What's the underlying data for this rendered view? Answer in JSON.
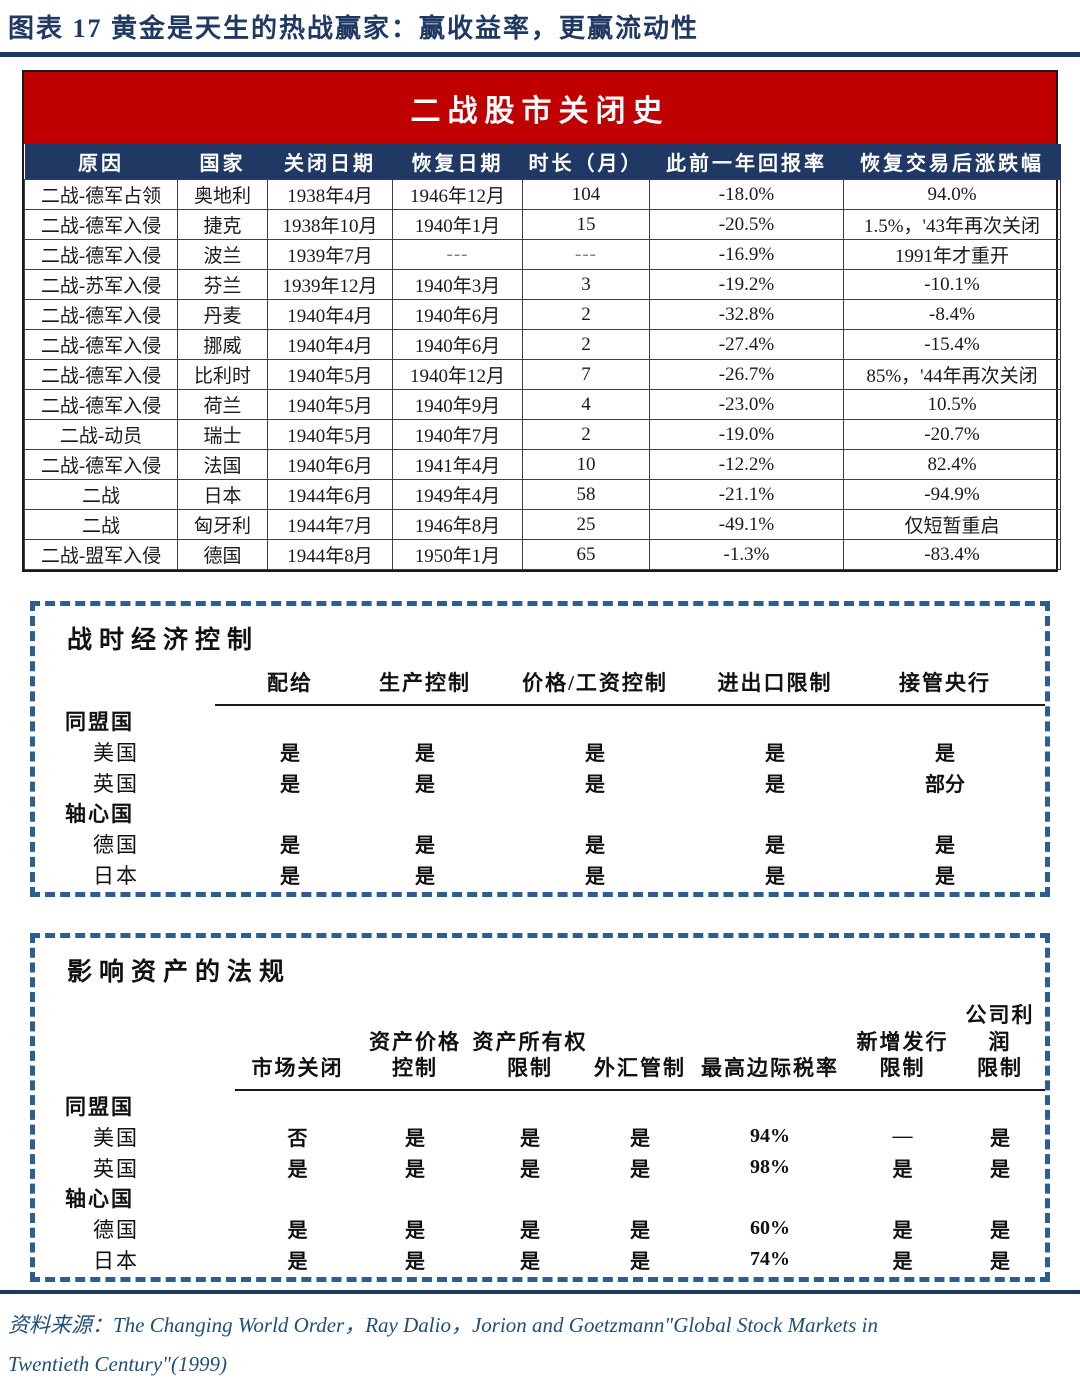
{
  "page": {
    "title": "图表 17  黄金是天生的热战赢家：赢收益率，更赢流动性",
    "source_line1": "资料来源：The Changing World Order，Ray Dalio，Jorion and Goetzmann\"Global Stock Markets in",
    "source_line2": "Twentieth Century\"(1999)"
  },
  "colors": {
    "navy": "#1F3864",
    "banner_red": "#C00000",
    "value_red": "#FF0000",
    "value_green": "#00B050",
    "value_blue": "#0070C0",
    "dashed_border_blue": "#2E5D8E",
    "source_blue": "#1F4E79"
  },
  "closure_table": {
    "banner": "二战股市关闭史",
    "columns": [
      "原因",
      "国家",
      "关闭日期",
      "恢复日期",
      "时长（月）",
      "此前一年回报率",
      "恢复交易后涨跌幅"
    ],
    "rows": [
      [
        "二战-德军占领",
        "奥地利",
        "1938年4月",
        "1946年12月",
        "104",
        "-18.0%",
        "94.0%"
      ],
      [
        "二战-德军入侵",
        "捷克",
        "1938年10月",
        "1940年1月",
        "15",
        "-20.5%",
        "1.5%，'43年再次关闭"
      ],
      [
        "二战-德军入侵",
        "波兰",
        "1939年7月",
        "---",
        "---",
        "-16.9%",
        "1991年才重开"
      ],
      [
        "二战-苏军入侵",
        "芬兰",
        "1939年12月",
        "1940年3月",
        "3",
        "-19.2%",
        "-10.1%"
      ],
      [
        "二战-德军入侵",
        "丹麦",
        "1940年4月",
        "1940年6月",
        "2",
        "-32.8%",
        "-8.4%"
      ],
      [
        "二战-德军入侵",
        "挪威",
        "1940年4月",
        "1940年6月",
        "2",
        "-27.4%",
        "-15.4%"
      ],
      [
        "二战-德军入侵",
        "比利时",
        "1940年5月",
        "1940年12月",
        "7",
        "-26.7%",
        "85%，'44年再次关闭"
      ],
      [
        "二战-德军入侵",
        "荷兰",
        "1940年5月",
        "1940年9月",
        "4",
        "-23.0%",
        "10.5%"
      ],
      [
        "二战-动员",
        "瑞士",
        "1940年5月",
        "1940年7月",
        "2",
        "-19.0%",
        "-20.7%"
      ],
      [
        "二战-德军入侵",
        "法国",
        "1940年6月",
        "1941年4月",
        "10",
        "-12.2%",
        "82.4%"
      ],
      [
        "二战",
        "日本",
        "1944年6月",
        "1949年4月",
        "58",
        "-21.1%",
        "-94.9%"
      ],
      [
        "二战",
        "匈牙利",
        "1944年7月",
        "1946年8月",
        "25",
        "-49.1%",
        "仅短暂重启"
      ],
      [
        "二战-盟军入侵",
        "德国",
        "1944年8月",
        "1950年1月",
        "65",
        "-1.3%",
        "-83.4%"
      ]
    ]
  },
  "wartime_controls": {
    "title": "战时经济控制",
    "columns": [
      "配给",
      "生产控制",
      "价格/工资控制",
      "进出口限制",
      "接管央行"
    ],
    "rows": [
      {
        "type": "group",
        "label": "同盟国"
      },
      {
        "type": "country",
        "label": "美国",
        "values": [
          {
            "t": "是",
            "c": "red"
          },
          {
            "t": "是",
            "c": "red"
          },
          {
            "t": "是",
            "c": "red"
          },
          {
            "t": "是",
            "c": "red"
          },
          {
            "t": "是",
            "c": "red"
          }
        ]
      },
      {
        "type": "country",
        "label": "英国",
        "values": [
          {
            "t": "是",
            "c": "red"
          },
          {
            "t": "是",
            "c": "red"
          },
          {
            "t": "是",
            "c": "red"
          },
          {
            "t": "是",
            "c": "red"
          },
          {
            "t": "部分",
            "c": "blue"
          }
        ]
      },
      {
        "type": "group",
        "label": "轴心国"
      },
      {
        "type": "country",
        "label": "德国",
        "values": [
          {
            "t": "是",
            "c": "red"
          },
          {
            "t": "是",
            "c": "red"
          },
          {
            "t": "是",
            "c": "red"
          },
          {
            "t": "是",
            "c": "red"
          },
          {
            "t": "是",
            "c": "red"
          }
        ]
      },
      {
        "type": "country",
        "label": "日本",
        "values": [
          {
            "t": "是",
            "c": "red"
          },
          {
            "t": "是",
            "c": "red"
          },
          {
            "t": "是",
            "c": "red"
          },
          {
            "t": "是",
            "c": "red"
          },
          {
            "t": "是",
            "c": "red"
          }
        ]
      }
    ]
  },
  "asset_regulations": {
    "title": "影响资产的法规",
    "columns": [
      "市场关闭",
      "资产价格\n控制",
      "资产所有权\n限制",
      "外汇管制",
      "最高边际税率",
      "新增发行\n限制",
      "公司利润\n限制"
    ],
    "rows": [
      {
        "type": "group",
        "label": "同盟国"
      },
      {
        "type": "country",
        "label": "美国",
        "values": [
          {
            "t": "否",
            "c": "green"
          },
          {
            "t": "是",
            "c": "red"
          },
          {
            "t": "是",
            "c": "red"
          },
          {
            "t": "是",
            "c": "red"
          },
          {
            "t": "94%",
            "c": "red"
          },
          {
            "t": "—",
            "c": "red"
          },
          {
            "t": "是",
            "c": "red"
          }
        ]
      },
      {
        "type": "country",
        "label": "英国",
        "values": [
          {
            "t": "是",
            "c": "red"
          },
          {
            "t": "是",
            "c": "red"
          },
          {
            "t": "是",
            "c": "red"
          },
          {
            "t": "是",
            "c": "red"
          },
          {
            "t": "98%",
            "c": "red"
          },
          {
            "t": "是",
            "c": "red"
          },
          {
            "t": "是",
            "c": "red"
          }
        ]
      },
      {
        "type": "group",
        "label": "轴心国"
      },
      {
        "type": "country",
        "label": "德国",
        "values": [
          {
            "t": "是",
            "c": "red"
          },
          {
            "t": "是",
            "c": "red"
          },
          {
            "t": "是",
            "c": "red"
          },
          {
            "t": "是",
            "c": "red"
          },
          {
            "t": "60%",
            "c": "red"
          },
          {
            "t": "是",
            "c": "red"
          },
          {
            "t": "是",
            "c": "red"
          }
        ]
      },
      {
        "type": "country",
        "label": "日本",
        "values": [
          {
            "t": "是",
            "c": "red"
          },
          {
            "t": "是",
            "c": "red"
          },
          {
            "t": "是",
            "c": "red"
          },
          {
            "t": "是",
            "c": "red"
          },
          {
            "t": "74%",
            "c": "red"
          },
          {
            "t": "是",
            "c": "red"
          },
          {
            "t": "是",
            "c": "red"
          }
        ]
      }
    ]
  }
}
